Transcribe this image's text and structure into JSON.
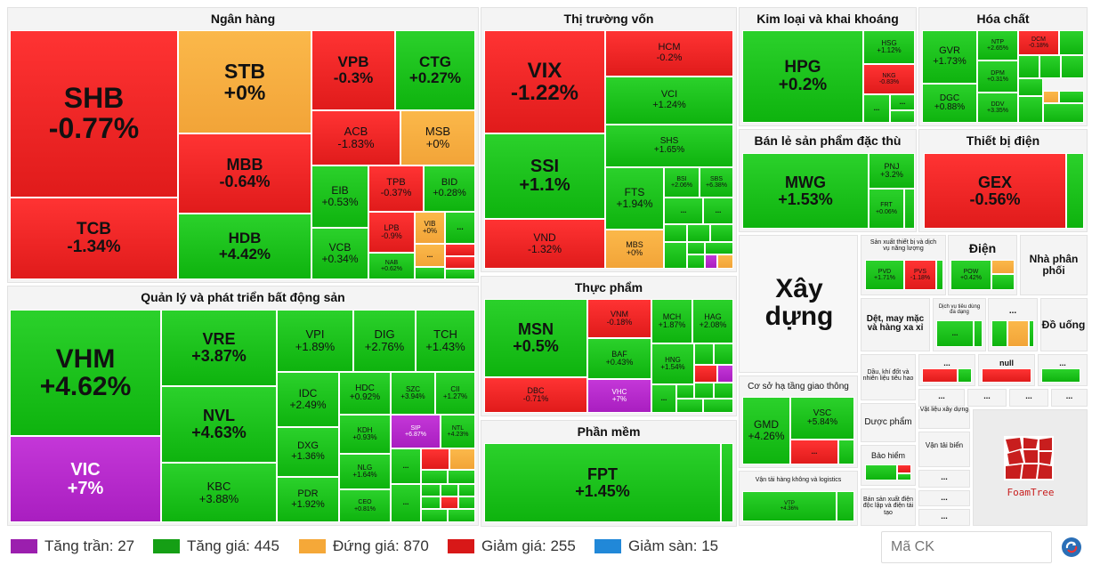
{
  "groups": {
    "ngan_hang": "Ngân hàng",
    "tt_von": "Thị trường vốn",
    "kim_loai": "Kim loại và khai khoáng",
    "hoa_chat": "Hóa chất",
    "ban_le": "Bán lẻ sản phẩm đặc thù",
    "thiet_bi_dien": "Thiết bị điện",
    "bds": "Quản lý và phát triển bất động sản",
    "thuc_pham": "Thực phẩm",
    "phan_mem": "Phần mềm",
    "xay_dung": "Xây dựng",
    "sx_thiet_bi": "Sản xuất thiết bị và dịch vụ năng lượng",
    "dien": "Điện",
    "nha_phan_phoi": "Nhà phân phối",
    "det_may": "Dệt, may mặc và hàng xa xỉ",
    "dich_vu_tieu_dung": "Dịch vụ tiêu dùng đa dạng",
    "do_uong": "Đồ uống",
    "dau_khi": "Dầu, khí đốt và nhiên liệu tiêu hao",
    "co_so_ha_tang": "Cơ sở hạ tầng giao thông",
    "van_tai_hk": "Vận tải hàng không và logistics",
    "vat_lieu": "Vật liệu xây dựng",
    "duoc": "Dược phẩm",
    "van_tai_bien": "Vận tải biển",
    "bao_hiem": "Bảo hiểm",
    "dien_tu": "Bán sản xuất điện độc lập và điện tái tạo",
    "null_label": "null",
    "ellipsis": "..."
  },
  "tiles": {
    "SHB": [
      "SHB",
      "-0.77%"
    ],
    "TCB": [
      "TCB",
      "-1.34%"
    ],
    "STB": [
      "STB",
      "+0%"
    ],
    "MBB": [
      "MBB",
      "-0.64%"
    ],
    "HDB": [
      "HDB",
      "+4.42%"
    ],
    "VPB": [
      "VPB",
      "-0.3%"
    ],
    "CTG": [
      "CTG",
      "+0.27%"
    ],
    "ACB": [
      "ACB",
      "-1.83%"
    ],
    "MSB": [
      "MSB",
      "+0%"
    ],
    "EIB": [
      "EIB",
      "+0.53%"
    ],
    "TPB": [
      "TPB",
      "-0.37%"
    ],
    "BID": [
      "BID",
      "+0.28%"
    ],
    "VCB": [
      "VCB",
      "+0.34%"
    ],
    "LPB": [
      "LPB",
      "-0.9%"
    ],
    "VIB": [
      "VIB",
      "+0%"
    ],
    "NAB": [
      "NAB",
      "+0.62%"
    ],
    "VIX": [
      "VIX",
      "-1.22%"
    ],
    "SSI": [
      "SSI",
      "+1.1%"
    ],
    "VND": [
      "VND",
      "-1.32%"
    ],
    "HCM": [
      "HCM",
      "-0.2%"
    ],
    "VCI": [
      "VCI",
      "+1.24%"
    ],
    "SHS": [
      "SHS",
      "+1.65%"
    ],
    "FTS": [
      "FTS",
      "+1.94%"
    ],
    "BSI": [
      "BSI",
      "+2.06%"
    ],
    "SBS": [
      "SBS",
      "+6.38%"
    ],
    "MBS": [
      "MBS",
      "+0%"
    ],
    "HPG": [
      "HPG",
      "+0.2%"
    ],
    "HSG": [
      "HSG",
      "+1.12%"
    ],
    "NKG": [
      "NKG",
      "-0.83%"
    ],
    "GVR": [
      "GVR",
      "+1.73%"
    ],
    "DGC": [
      "DGC",
      "+0.88%"
    ],
    "NTP": [
      "NTP",
      "+2.65%"
    ],
    "DCM": [
      "DCM",
      "-0.18%"
    ],
    "DPM": [
      "DPM",
      "+0.31%"
    ],
    "DDV": [
      "DDV",
      "+3.35%"
    ],
    "MWG": [
      "MWG",
      "+1.53%"
    ],
    "PNJ": [
      "PNJ",
      "+3.2%"
    ],
    "FRT": [
      "FRT",
      "+0.06%"
    ],
    "GEX": [
      "GEX",
      "-0.56%"
    ],
    "VHM": [
      "VHM",
      "+4.62%"
    ],
    "VIC": [
      "VIC",
      "+7%"
    ],
    "VRE": [
      "VRE",
      "+3.87%"
    ],
    "NVL": [
      "NVL",
      "+4.63%"
    ],
    "KBC": [
      "KBC",
      "+3.88%"
    ],
    "VPI": [
      "VPI",
      "+1.89%"
    ],
    "DIG": [
      "DIG",
      "+2.76%"
    ],
    "TCH": [
      "TCH",
      "+1.43%"
    ],
    "IDC": [
      "IDC",
      "+2.49%"
    ],
    "HDC": [
      "HDC",
      "+0.92%"
    ],
    "SZC": [
      "SZC",
      "+3.94%"
    ],
    "CII": [
      "CII",
      "+1.27%"
    ],
    "DXG": [
      "DXG",
      "+1.36%"
    ],
    "KDH": [
      "KDH",
      "+0.93%"
    ],
    "SIP": [
      "SIP",
      "+6.87%"
    ],
    "NTL": [
      "NTL",
      "+4.23%"
    ],
    "NLG": [
      "NLG",
      "+1.64%"
    ],
    "PDR": [
      "PDR",
      "+1.92%"
    ],
    "CEO": [
      "CEO",
      "+0.81%"
    ],
    "MSN": [
      "MSN",
      "+0.5%"
    ],
    "DBC": [
      "DBC",
      "-0.71%"
    ],
    "VNM": [
      "VNM",
      "-0.18%"
    ],
    "MCH": [
      "MCH",
      "+1.87%"
    ],
    "HAG": [
      "HAG",
      "+2.08%"
    ],
    "BAF": [
      "BAF",
      "+0.43%"
    ],
    "HNG": [
      "HNG",
      "+1.54%"
    ],
    "VHC": [
      "VHC",
      "+7%"
    ],
    "FPT": [
      "FPT",
      "+1.45%"
    ],
    "GMD": [
      "GMD",
      "+4.26%"
    ],
    "VSC": [
      "VSC",
      "+5.84%"
    ],
    "VTP": [
      "VTP",
      "+4.36%"
    ],
    "PVD": [
      "PVD",
      "+1.71%"
    ],
    "PVS": [
      "PVS",
      "-1.18%"
    ],
    "POW": [
      "POW",
      "+0.42%"
    ]
  },
  "legend": [
    {
      "label": "Tăng trần: 27",
      "color": "#9b1fae"
    },
    {
      "label": "Tăng giá: 445",
      "color": "#159f15"
    },
    {
      "label": "Đứng giá: 870",
      "color": "#f5a838"
    },
    {
      "label": "Giảm giá: 255",
      "color": "#d81818"
    },
    {
      "label": "Giảm sàn: 15",
      "color": "#2188d8"
    }
  ],
  "search": {
    "placeholder": "Mã CK"
  },
  "logo": "FoamTree"
}
